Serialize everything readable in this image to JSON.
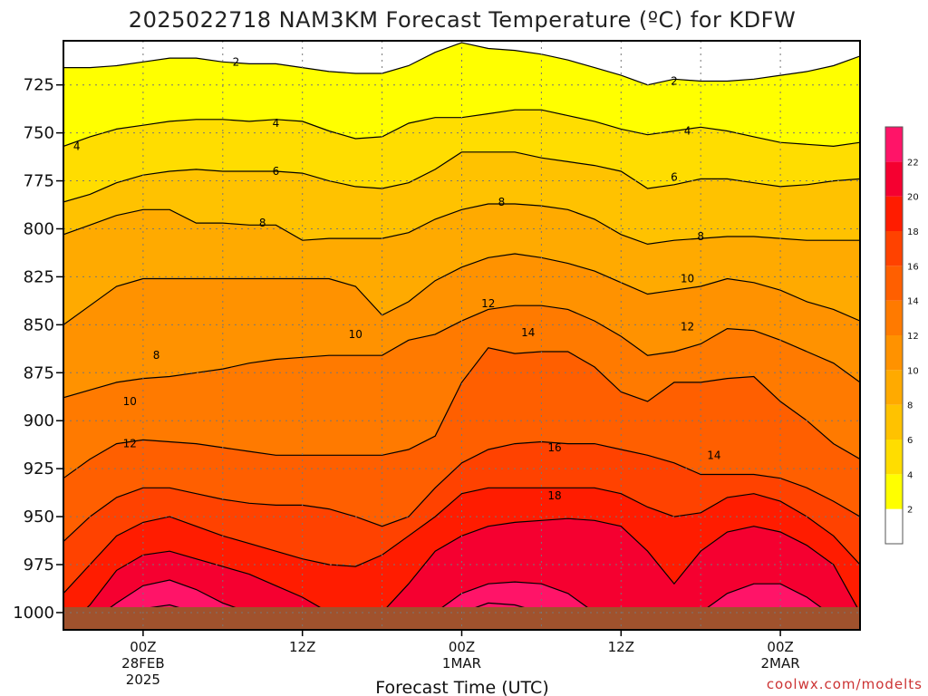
{
  "chart_data": {
    "type": "heatmap",
    "title": "2025022718 NAM3KM Forecast Temperature (ºC) for KDFW",
    "xlabel": "Forecast Time (UTC)",
    "ylabel": "",
    "x_ticks": [
      {
        "label": "00Z",
        "sub1": "28FEB",
        "sub2": "2025",
        "hour": 6
      },
      {
        "label": "12Z",
        "sub1": "",
        "sub2": "",
        "hour": 18
      },
      {
        "label": "00Z",
        "sub1": "1MAR",
        "sub2": "",
        "hour": 30
      },
      {
        "label": "12Z",
        "sub1": "",
        "sub2": "",
        "hour": 42
      },
      {
        "label": "00Z",
        "sub1": "2MAR",
        "sub2": "",
        "hour": 54
      }
    ],
    "xlim": [
      0,
      60
    ],
    "y_ticks": [
      725,
      750,
      775,
      800,
      825,
      850,
      875,
      900,
      925,
      950,
      975,
      1000
    ],
    "ylim": [
      1009,
      702
    ],
    "pressure_levels": [
      700,
      725,
      750,
      775,
      800,
      825,
      850,
      875,
      900,
      925,
      950,
      975,
      1000
    ],
    "contour_levels": [
      2,
      4,
      6,
      8,
      10,
      12,
      14,
      16,
      18,
      20,
      22,
      24
    ],
    "contour_labels": [
      {
        "text": "2",
        "hour": 13,
        "p": 713
      },
      {
        "text": "2",
        "hour": 46,
        "p": 723
      },
      {
        "text": "4",
        "hour": 1,
        "p": 757
      },
      {
        "text": "4",
        "hour": 16,
        "p": 745
      },
      {
        "text": "4",
        "hour": 47,
        "p": 749
      },
      {
        "text": "6",
        "hour": 16,
        "p": 770
      },
      {
        "text": "6",
        "hour": 46,
        "p": 773
      },
      {
        "text": "8",
        "hour": 15,
        "p": 797
      },
      {
        "text": "8",
        "hour": 33,
        "p": 786
      },
      {
        "text": "8",
        "hour": 48,
        "p": 804
      },
      {
        "text": "8",
        "hour": 7,
        "p": 866
      },
      {
        "text": "10",
        "hour": 47,
        "p": 826
      },
      {
        "text": "10",
        "hour": 22,
        "p": 855
      },
      {
        "text": "10",
        "hour": 5,
        "p": 890
      },
      {
        "text": "12",
        "hour": 32,
        "p": 839
      },
      {
        "text": "12",
        "hour": 47,
        "p": 851
      },
      {
        "text": "12",
        "hour": 5,
        "p": 912
      },
      {
        "text": "14",
        "hour": 35,
        "p": 854
      },
      {
        "text": "14",
        "hour": 49,
        "p": 918
      },
      {
        "text": "16",
        "hour": 37,
        "p": 914
      },
      {
        "text": "18",
        "hour": 37,
        "p": 939
      }
    ],
    "grid": true,
    "colorbar": {
      "ticks": [
        2,
        4,
        6,
        8,
        10,
        12,
        14,
        16,
        18,
        20,
        22
      ],
      "placement": "right",
      "colors": [
        "#ffffff",
        "#ffff00",
        "#ffdd00",
        "#ffc200",
        "#ffaa00",
        "#ff9200",
        "#ff7a00",
        "#ff5f00",
        "#ff4200",
        "#ff1c00",
        "#f50030",
        "#ff1468"
      ]
    },
    "ground_color": "#a0522d",
    "credit": "coolwx.com/modelts"
  }
}
